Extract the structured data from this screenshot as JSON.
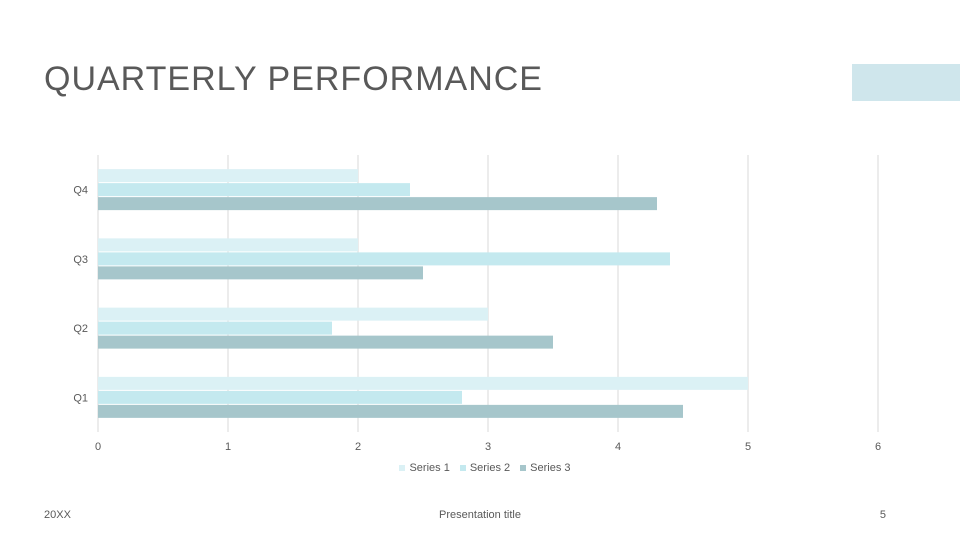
{
  "slide": {
    "title": "QUARTERLY PERFORMANCE",
    "footer_left": "20XX",
    "footer_center": "Presentation title",
    "footer_right": "5",
    "accent_color": "#cfe6ec"
  },
  "chart_data": {
    "type": "bar",
    "orientation": "horizontal",
    "categories": [
      "Q1",
      "Q2",
      "Q3",
      "Q4"
    ],
    "series": [
      {
        "name": "Series 1",
        "values": [
          5,
          3,
          2,
          2
        ],
        "color": "#dbf1f5"
      },
      {
        "name": "Series 2",
        "values": [
          2.8,
          1.8,
          4.4,
          2.4
        ],
        "color": "#c4e9ef"
      },
      {
        "name": "Series 3",
        "values": [
          4.5,
          3.5,
          2.5,
          4.3
        ],
        "color": "#a6c6cb"
      }
    ],
    "xlim": [
      0,
      6
    ],
    "xticks": [
      "0",
      "1",
      "2",
      "3",
      "4",
      "5",
      "6"
    ],
    "grid": true,
    "legend_position": "bottom"
  }
}
